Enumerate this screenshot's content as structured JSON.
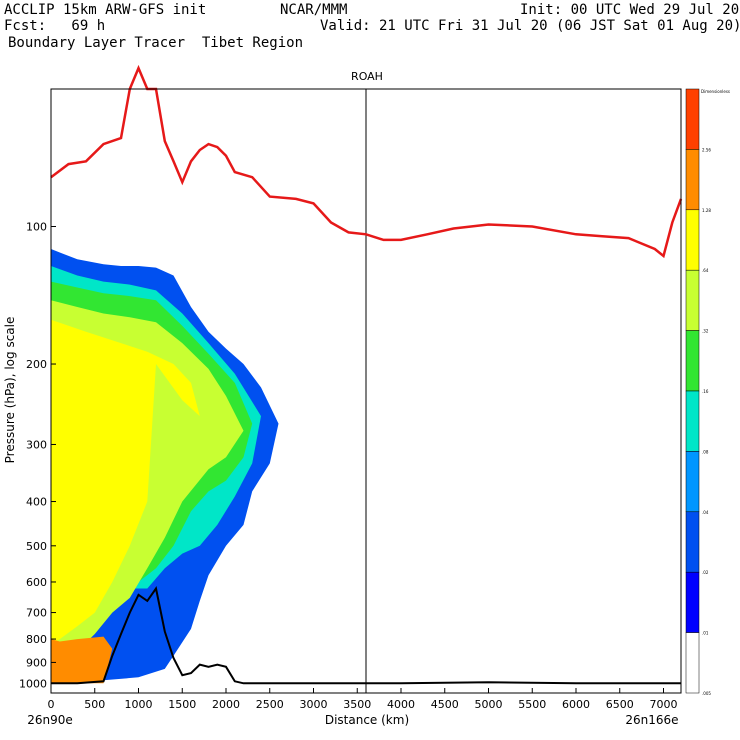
{
  "header": {
    "left_line1": "ACCLIP 15km ARW-GFS init",
    "center_line1": "NCAR/MMM",
    "right_line1": "Init: 00 UTC Wed 29 Jul 20",
    "left_line2": "Fcst:   69 h",
    "right_line2": "Valid: 21 UTC Fri 31 Jul 20 (06 JST Sat 01 Aug 20)",
    "left_line3": "Boundary Layer Tracer  Tibet Region"
  },
  "chart_data": {
    "type": "cross-section",
    "title": "ROAH",
    "xlabel": "Distance (km)",
    "ylabel": "Pressure (hPa), log scale",
    "xlim": [
      0,
      7200
    ],
    "ylim": [
      1050,
      50
    ],
    "x_ticks": [
      0,
      500,
      1000,
      1500,
      2000,
      2500,
      3000,
      3500,
      4000,
      4500,
      5000,
      5500,
      6000,
      6500,
      7000
    ],
    "y_ticks": [
      100,
      200,
      300,
      400,
      500,
      600,
      700,
      800,
      900,
      1000
    ],
    "left_endpoint": "26n90e",
    "right_endpoint": "26n166e",
    "vertical_marker_km": 3600,
    "colorbar": {
      "top_label": "Dimensionless",
      "levels": [
        "2.56",
        "1.28",
        ".64",
        ".32",
        ".16",
        ".08",
        ".04",
        ".02",
        ".01",
        ".005"
      ],
      "colors": [
        "#ff4000",
        "#ff8c00",
        "#ffff00",
        "#c8ff32",
        "#32e632",
        "#00e6c8",
        "#0096ff",
        "#0050f0",
        "#0000ff",
        "#ffffff"
      ]
    },
    "tropopause_line": {
      "color": "#e61919",
      "x": [
        0,
        200,
        400,
        600,
        800,
        900,
        1000,
        1100,
        1200,
        1300,
        1400,
        1500,
        1600,
        1700,
        1800,
        1900,
        2000,
        2100,
        2300,
        2500,
        2800,
        3000,
        3200,
        3400,
        3600,
        3800,
        4000,
        4300,
        4600,
        5000,
        5500,
        6000,
        6300,
        6600,
        6900,
        7000,
        7100,
        7200
      ],
      "p": [
        78,
        73,
        72,
        66,
        64,
        50,
        45,
        50,
        50,
        65,
        72,
        80,
        72,
        68,
        66,
        67,
        70,
        76,
        78,
        86,
        87,
        89,
        98,
        103,
        104,
        107,
        107,
        104,
        101,
        99,
        100,
        104,
        105,
        106,
        112,
        116,
        98,
        87
      ]
    },
    "terrain_line": {
      "color": "#000000",
      "x": [
        0,
        300,
        600,
        700,
        800,
        900,
        1000,
        1100,
        1200,
        1300,
        1400,
        1500,
        1600,
        1700,
        1800,
        1900,
        2000,
        2100,
        2200,
        2500,
        3000,
        4000,
        5000,
        6000,
        7000,
        7200
      ],
      "p": [
        1000,
        1000,
        990,
        870,
        780,
        700,
        640,
        660,
        620,
        770,
        880,
        960,
        950,
        910,
        920,
        910,
        920,
        990,
        1000,
        1000,
        1000,
        1000,
        995,
        1000,
        1000,
        1000
      ]
    },
    "tracer_fields": [
      {
        "level": ".005",
        "x": [
          0,
          100,
          300,
          600,
          800,
          1000,
          1200,
          1400,
          1600,
          1800,
          2000,
          2200,
          2400,
          2700,
          2800,
          2600,
          2400,
          2300,
          2200,
          2000,
          1800,
          1700,
          1600,
          1400,
          1300,
          1000,
          600,
          300,
          0
        ],
        "p": [
          105,
          108,
          113,
          116,
          117,
          116,
          117,
          120,
          140,
          160,
          175,
          190,
          210,
          230,
          280,
          320,
          360,
          420,
          480,
          530,
          620,
          700,
          800,
          900,
          960,
          990,
          995,
          1000,
          1000
        ]
      },
      {
        "level": ".02",
        "x": [
          0,
          100,
          300,
          600,
          800,
          1000,
          1200,
          1400,
          1600,
          1800,
          2000,
          2200,
          2400,
          2600,
          2500,
          2300,
          2200,
          2000,
          1800,
          1700,
          1600,
          1400,
          1300,
          1000,
          600,
          0
        ],
        "p": [
          112,
          114,
          118,
          121,
          122,
          122,
          123,
          128,
          150,
          170,
          185,
          200,
          225,
          270,
          330,
          380,
          450,
          500,
          580,
          660,
          760,
          870,
          930,
          970,
          985,
          1000
        ]
      },
      {
        "level": ".08",
        "x": [
          0,
          300,
          600,
          900,
          1200,
          1500,
          1800,
          2100,
          2400,
          2300,
          2100,
          1900,
          1700,
          1500,
          1300,
          1100,
          800,
          500,
          200,
          0
        ],
        "p": [
          122,
          128,
          132,
          134,
          138,
          155,
          180,
          210,
          260,
          330,
          390,
          450,
          500,
          520,
          560,
          620,
          620,
          700,
          800,
          950
        ]
      },
      {
        "level": ".16",
        "x": [
          0,
          300,
          600,
          900,
          1200,
          1500,
          1800,
          2100,
          2300,
          2200,
          2000,
          1800,
          1600,
          1400,
          1200,
          1000,
          700,
          400,
          100,
          0
        ],
        "p": [
          132,
          136,
          140,
          142,
          145,
          165,
          190,
          220,
          270,
          320,
          360,
          380,
          420,
          500,
          560,
          600,
          620,
          700,
          750,
          800
        ]
      },
      {
        "level": ".32",
        "x": [
          0,
          300,
          600,
          900,
          1200,
          1500,
          1800,
          2000,
          2200,
          2000,
          1800,
          1500,
          1300,
          1100,
          900,
          700,
          500,
          300,
          100,
          0
        ],
        "p": [
          145,
          150,
          155,
          158,
          162,
          180,
          205,
          235,
          280,
          320,
          340,
          400,
          480,
          560,
          650,
          700,
          780,
          850,
          920,
          950
        ]
      },
      {
        "level": ".64",
        "x": [
          0,
          400,
          800,
          1100,
          1400,
          1600,
          1700,
          1500,
          1200,
          1100,
          900,
          700,
          500,
          300,
          100,
          0
        ],
        "p": [
          160,
          170,
          180,
          188,
          200,
          220,
          260,
          240,
          200,
          400,
          500,
          600,
          700,
          750,
          800,
          820
        ]
      },
      {
        "level": "1.28",
        "x": [
          0,
          100,
          300,
          600,
          700,
          600,
          300,
          100,
          0
        ],
        "p": [
          800,
          810,
          800,
          790,
          840,
          1000,
          1000,
          1000,
          1000
        ]
      }
    ]
  }
}
